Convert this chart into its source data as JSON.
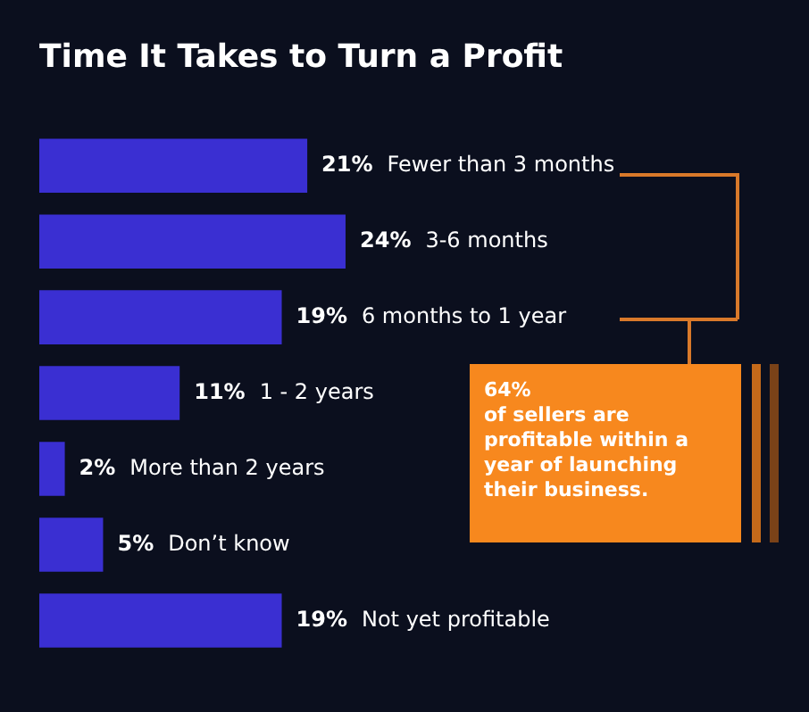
{
  "chart_data": {
    "type": "bar",
    "orientation": "horizontal",
    "title": "Time It Takes to Turn a Profit",
    "categories": [
      "Fewer than 3 months",
      "3-6 months",
      "6 months to 1 year",
      "1 - 2 years",
      "More than 2 years",
      "Don’t know",
      "Not yet profitable"
    ],
    "values": [
      21,
      24,
      19,
      11,
      2,
      5,
      19
    ],
    "value_labels": [
      "21%",
      "24%",
      "19%",
      "11%",
      "2%",
      "5%",
      "19%"
    ],
    "color": "#3a2fd2",
    "xlim": [
      0,
      55
    ],
    "tick_labels": false,
    "legend": false,
    "annotations": [
      "64%\nof sellers are profitable within a year of launching their business."
    ]
  }
}
